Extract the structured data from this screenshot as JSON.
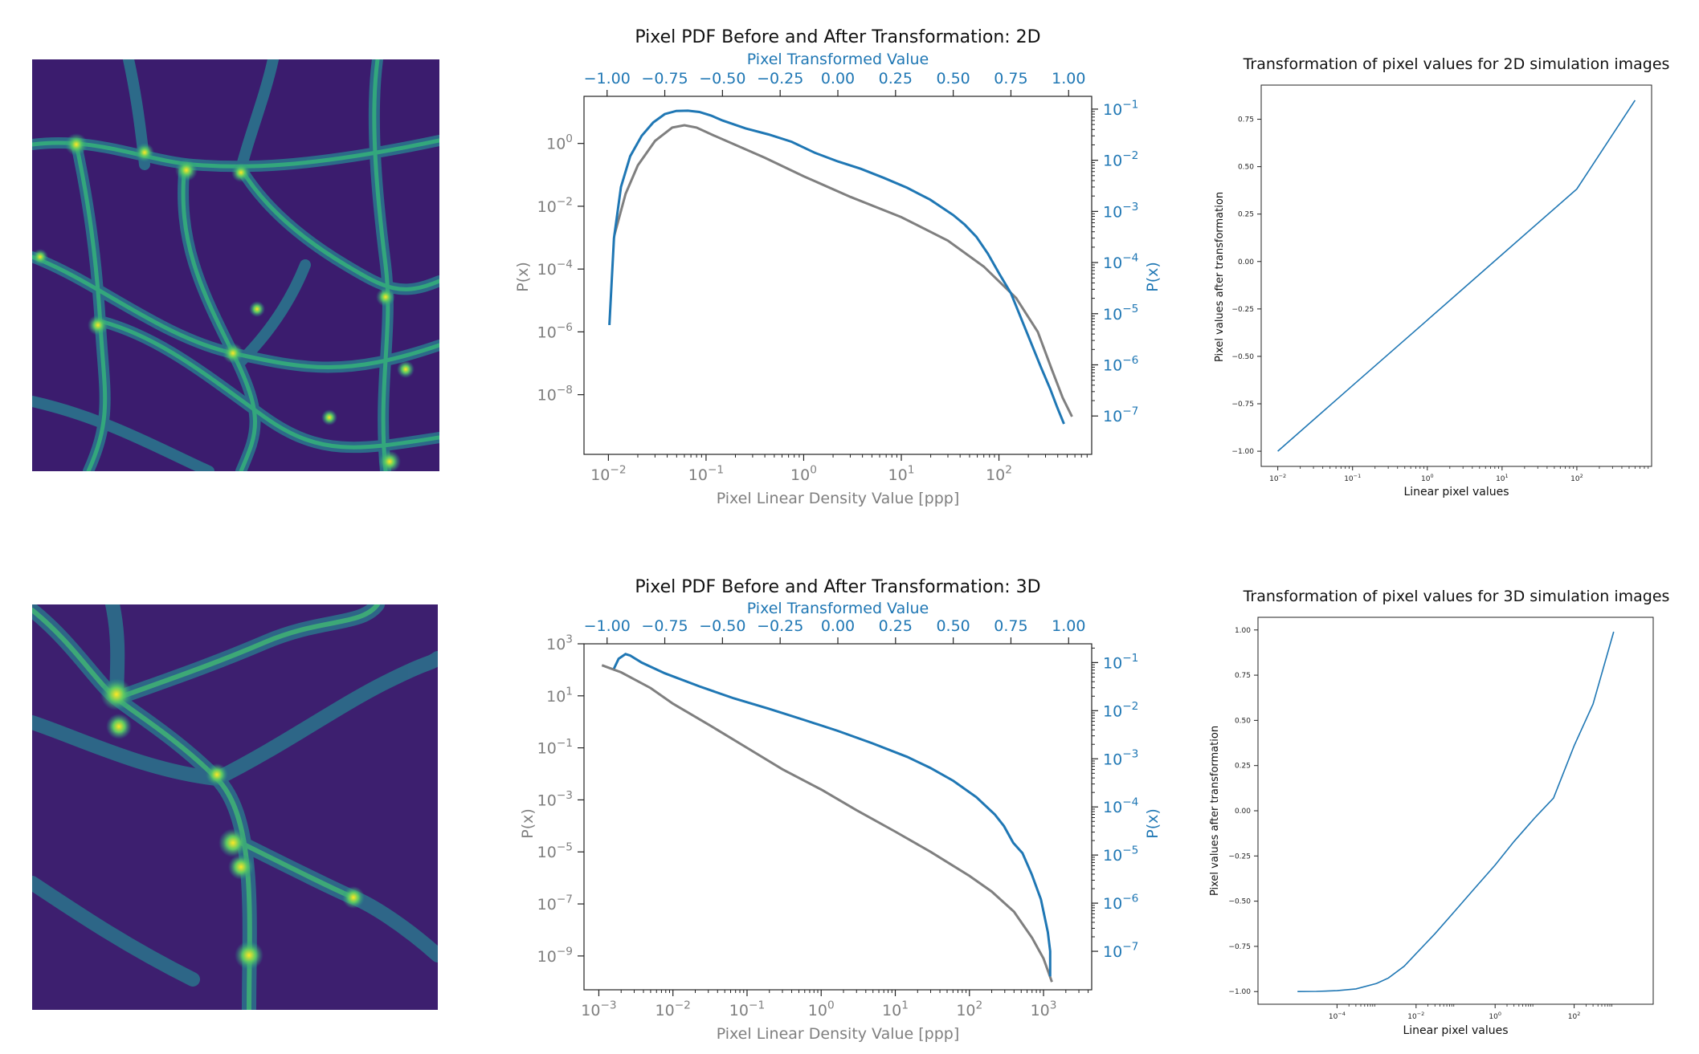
{
  "colors": {
    "gray": "#7f7f7f",
    "blue": "#1f77b4",
    "viridis_dark": "#440154",
    "viridis_mid": "#2a788e",
    "viridis_light": "#22a884",
    "viridis_yellow": "#fde725"
  },
  "chart_data": [
    {
      "type": "image",
      "title": "",
      "colormap": "viridis"
    },
    {
      "type": "line",
      "title": "Pixel PDF Before and After Transformation: 2D",
      "xlabel": "Pixel Linear Density Value [ppp]",
      "xlabel_top": "Pixel Transformed Value",
      "ylabel": "P(x)",
      "ylabel_right": "P(x)",
      "x_scale": "log",
      "x_bottom_ticks": [
        "10^-2",
        "10^-1",
        "10^0",
        "10^1",
        "10^2"
      ],
      "x_top_ticks": [
        "−1.00",
        "−0.75",
        "−0.50",
        "−0.25",
        "0.00",
        "0.25",
        "0.50",
        "0.75",
        "1.00"
      ],
      "y_left_ticks": [
        "10^0",
        "10^-2",
        "10^-4",
        "10^-6",
        "10^-8"
      ],
      "y_right_ticks": [
        "10^-1",
        "10^-2",
        "10^-3",
        "10^-4",
        "10^-5",
        "10^-6",
        "10^-7"
      ],
      "series": [
        {
          "axes": "bottom-left",
          "color": "gray",
          "x": [
            0.0115,
            0.015,
            0.02,
            0.03,
            0.045,
            0.06,
            0.08,
            0.12,
            0.2,
            0.4,
            1.0,
            3,
            10,
            30,
            70,
            150,
            250,
            350,
            450,
            560
          ],
          "y": [
            0.0012,
            0.025,
            0.2,
            1.2,
            3.2,
            3.8,
            3.2,
            1.8,
            0.9,
            0.35,
            0.09,
            0.02,
            0.0045,
            0.0008,
            0.00012,
            1.2e-05,
            1e-06,
            6e-08,
            8e-09,
            2e-09
          ]
        },
        {
          "axes": "top-right",
          "color": "blue",
          "x": [
            -0.99,
            -0.97,
            -0.94,
            -0.9,
            -0.85,
            -0.8,
            -0.75,
            -0.7,
            -0.65,
            -0.6,
            -0.55,
            -0.5,
            -0.4,
            -0.3,
            -0.2,
            -0.1,
            0.0,
            0.1,
            0.2,
            0.3,
            0.4,
            0.5,
            0.55,
            0.6,
            0.65,
            0.7,
            0.75,
            0.8,
            0.84,
            0.88,
            0.92,
            0.95,
            0.98
          ],
          "y": [
            6e-06,
            0.0003,
            0.003,
            0.012,
            0.03,
            0.055,
            0.08,
            0.092,
            0.093,
            0.088,
            0.075,
            0.06,
            0.042,
            0.032,
            0.023,
            0.014,
            0.0095,
            0.0068,
            0.0045,
            0.0029,
            0.0017,
            0.00085,
            0.00055,
            0.00032,
            0.00015,
            6e-05,
            2.5e-05,
            7e-06,
            2.5e-06,
            9e-07,
            3.4e-07,
            1.5e-07,
            7e-08
          ]
        }
      ]
    },
    {
      "type": "line",
      "title": "Transformation of pixel values for 2D simulation images",
      "xlabel": "Linear pixel values",
      "ylabel": "Pixel values after transformation",
      "x_scale": "log",
      "xlim": [
        0.006,
        1000
      ],
      "ylim": [
        -1.08,
        0.93
      ],
      "x_ticks": [
        "10^-2",
        "10^-1",
        "10^0",
        "10^1",
        "10^2"
      ],
      "y_ticks": [
        "0.75",
        "0.50",
        "0.25",
        "0.00",
        "−0.25",
        "−0.50",
        "−0.75",
        "−1.00"
      ],
      "series": [
        {
          "color": "blue",
          "x": [
            0.01,
            0.1,
            1,
            10,
            100,
            600
          ],
          "y": [
            -1.0,
            -0.654,
            -0.309,
            0.037,
            0.382,
            0.85
          ]
        }
      ]
    },
    {
      "type": "image",
      "title": "",
      "colormap": "viridis"
    },
    {
      "type": "line",
      "title": "Pixel PDF Before and After Transformation: 3D",
      "xlabel": "Pixel Linear Density Value [ppp]",
      "xlabel_top": "Pixel Transformed Value",
      "ylabel": "P(x)",
      "ylabel_right": "P(x)",
      "x_scale": "log",
      "x_bottom_ticks": [
        "10^-3",
        "10^-2",
        "10^-1",
        "10^0",
        "10^1",
        "10^2",
        "10^3"
      ],
      "x_top_ticks": [
        "−1.00",
        "−0.75",
        "−0.50",
        "−0.25",
        "0.00",
        "0.25",
        "0.50",
        "0.75",
        "1.00"
      ],
      "y_left_ticks": [
        "10^3",
        "10^1",
        "10^-1",
        "10^-3",
        "10^-5",
        "10^-7",
        "10^-9"
      ],
      "y_right_ticks": [
        "10^-1",
        "10^-2",
        "10^-3",
        "10^-4",
        "10^-5",
        "10^-6",
        "10^-7"
      ],
      "series": [
        {
          "axes": "bottom-left",
          "color": "gray",
          "x": [
            0.0011,
            0.002,
            0.005,
            0.01,
            0.03,
            0.1,
            0.3,
            1,
            3,
            10,
            30,
            100,
            200,
            400,
            700,
            1000,
            1300
          ],
          "y": [
            150,
            80,
            20,
            5,
            0.8,
            0.1,
            0.015,
            0.0025,
            0.0004,
            6e-05,
            1e-05,
            1.2e-06,
            3e-07,
            5e-08,
            5e-09,
            8e-10,
            1e-10
          ]
        },
        {
          "axes": "top-right",
          "color": "blue",
          "x": [
            -0.97,
            -0.95,
            -0.92,
            -0.9,
            -0.85,
            -0.75,
            -0.6,
            -0.45,
            -0.3,
            -0.15,
            0.0,
            0.15,
            0.3,
            0.4,
            0.5,
            0.6,
            0.68,
            0.72,
            0.76,
            0.8,
            0.84,
            0.88,
            0.91,
            0.92,
            0.92
          ],
          "y": [
            0.075,
            0.12,
            0.15,
            0.14,
            0.1,
            0.06,
            0.032,
            0.018,
            0.011,
            0.0065,
            0.0038,
            0.0021,
            0.0011,
            0.00065,
            0.00035,
            0.00016,
            7e-05,
            4e-05,
            1.8e-05,
            1.1e-05,
            4e-06,
            1.2e-06,
            2.5e-07,
            1e-07,
            3e-08
          ]
        }
      ]
    },
    {
      "type": "line",
      "title": "Transformation of pixel values for 3D simulation images",
      "xlabel": "Linear pixel values",
      "ylabel": "Pixel values after transformation",
      "x_scale": "log",
      "xlim": [
        1e-06,
        10000
      ],
      "ylim": [
        -1.07,
        1.07
      ],
      "x_ticks": [
        "10^-4",
        "10^-2",
        "10^0",
        "10^2"
      ],
      "y_ticks": [
        "1.00",
        "0.75",
        "0.50",
        "0.25",
        "0.00",
        "−0.25",
        "−0.50",
        "−0.75",
        "−1.00"
      ],
      "series": [
        {
          "color": "blue",
          "x": [
            1e-05,
            3e-05,
            0.0001,
            0.0003,
            0.001,
            0.002,
            0.005,
            0.01,
            0.03,
            0.1,
            0.3,
            1,
            3,
            10,
            30,
            100,
            300,
            1000
          ],
          "y": [
            -1.0,
            -0.999,
            -0.995,
            -0.985,
            -0.955,
            -0.925,
            -0.86,
            -0.79,
            -0.68,
            -0.55,
            -0.43,
            -0.3,
            -0.17,
            -0.04,
            0.07,
            0.36,
            0.59,
            0.99
          ]
        }
      ]
    }
  ]
}
